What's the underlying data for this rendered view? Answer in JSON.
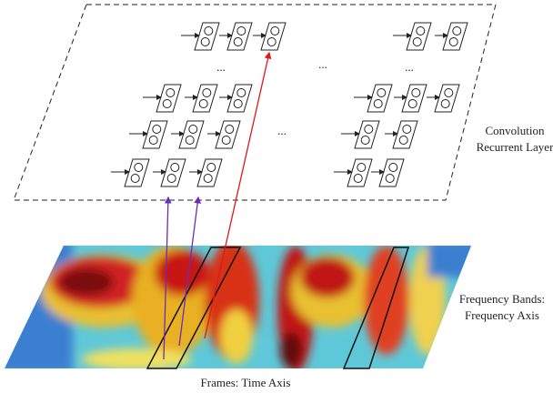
{
  "labels": {
    "layer_line1": "Convolution",
    "layer_line2": "Recurrent Layer",
    "freq_line1": "Frequency Bands:",
    "freq_line2": "Frequency Axis",
    "time": "Frames: Time Axis"
  },
  "ellipses": [
    "...",
    "...",
    "...",
    "..."
  ]
}
